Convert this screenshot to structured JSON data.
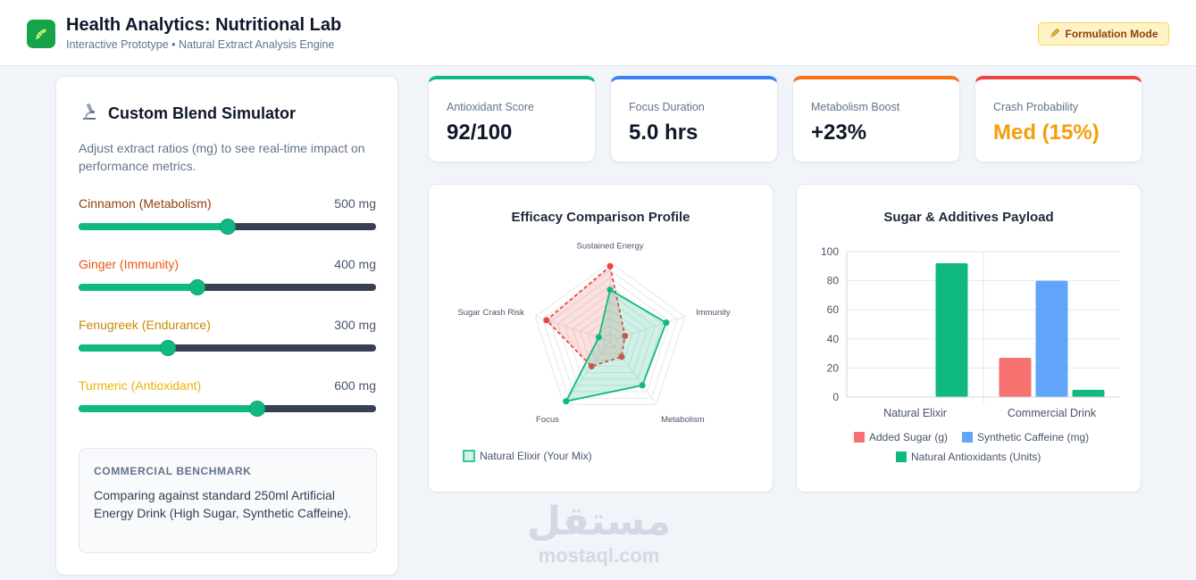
{
  "header": {
    "logo_icon": "leaf-icon",
    "title": "Health Analytics: Nutritional Lab",
    "subtitle": "Interactive Prototype • Natural Extract Analysis Engine",
    "mode_icon": "pencil-icon",
    "mode_label": "Formulation Mode"
  },
  "simulator": {
    "icon": "microscope-icon",
    "title": "Custom Blend Simulator",
    "description": "Adjust extract ratios (mg) to see real-time impact on performance metrics.",
    "sliders": [
      {
        "label": "Cinnamon (Metabolism)",
        "value": "500 mg",
        "amount": 500,
        "max": 1000,
        "color": "#92400e"
      },
      {
        "label": "Ginger (Immunity)",
        "value": "400 mg",
        "amount": 400,
        "max": 1000,
        "color": "#ea580c"
      },
      {
        "label": "Fenugreek (Endurance)",
        "value": "300 mg",
        "amount": 300,
        "max": 1000,
        "color": "#ca8a04"
      },
      {
        "label": "Turmeric (Antioxidant)",
        "value": "600 mg",
        "amount": 600,
        "max": 1000,
        "color": "#eab308"
      }
    ],
    "benchmark": {
      "title": "COMMERCIAL BENCHMARK",
      "text": "Comparing against standard 250ml Artificial Energy Drink (High Sugar, Synthetic Caffeine)."
    }
  },
  "metrics": [
    {
      "label": "Antioxidant Score",
      "value": "92/100",
      "accent": "#10b981",
      "value_color": "#0f172a"
    },
    {
      "label": "Focus Duration",
      "value": "5.0 hrs",
      "accent": "#3b82f6",
      "value_color": "#0f172a"
    },
    {
      "label": "Metabolism Boost",
      "value": "+23%",
      "accent": "#f97316",
      "value_color": "#0f172a"
    },
    {
      "label": "Crash Probability",
      "value": "Med (15%)",
      "accent": "#ef4444",
      "value_color": "#f59e0b"
    }
  ],
  "chart_data": [
    {
      "type": "radar",
      "title": "Efficacy Comparison Profile",
      "axes": [
        "Sustained Energy",
        "Immunity",
        "Metabolism",
        "Focus",
        "Sugar Crash Risk"
      ],
      "rmax": 100,
      "series": [
        {
          "name": "Natural Elixir (Your Mix)",
          "values": [
            65,
            75,
            70,
            95,
            15
          ],
          "color": "#10b981"
        },
        {
          "name": "",
          "values": [
            95,
            20,
            25,
            40,
            85
          ],
          "color": "#ef4444"
        }
      ],
      "legend": {
        "position": "bottom-left",
        "entries": [
          "Natural Elixir (Your Mix)"
        ]
      }
    },
    {
      "type": "bar",
      "title": "Sugar & Additives Payload",
      "categories": [
        "Natural Elixir",
        "Commercial Drink"
      ],
      "series": [
        {
          "name": "Added Sugar (g)",
          "values": [
            0,
            27
          ],
          "color": "#f87171"
        },
        {
          "name": "Synthetic Caffeine (mg)",
          "values": [
            0,
            80
          ],
          "color": "#60a5fa"
        },
        {
          "name": "Natural Antioxidants (Units)",
          "values": [
            92,
            5
          ],
          "color": "#10b981"
        }
      ],
      "ylim": [
        0,
        100
      ],
      "yticks": [
        0,
        20,
        40,
        60,
        80,
        100
      ],
      "grid": true,
      "legend": "bottom"
    }
  ],
  "watermark": {
    "arabic": "مستقل",
    "latin": "mostaql.com"
  }
}
